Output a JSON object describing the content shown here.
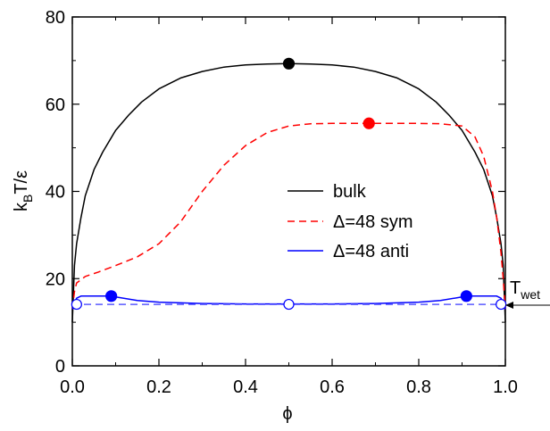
{
  "chart_data": {
    "type": "line",
    "title": "",
    "xlabel": "ϕ",
    "ylabel": {
      "k": "k",
      "sub": "B",
      "rest": "T/ε"
    },
    "xlim": [
      0,
      1
    ],
    "ylim": [
      0,
      80
    ],
    "x_ticks": [
      "0.0",
      "0.2",
      "0.4",
      "0.6",
      "0.8",
      "1.0"
    ],
    "y_ticks": [
      "0",
      "20",
      "40",
      "60",
      "80"
    ],
    "grid": false,
    "legend_position": "center-right",
    "series": [
      {
        "name": "bulk",
        "style": "solid",
        "color": "#000000",
        "x": [
          0.0,
          0.005,
          0.01,
          0.02,
          0.03,
          0.05,
          0.07,
          0.1,
          0.13,
          0.16,
          0.2,
          0.25,
          0.3,
          0.35,
          0.4,
          0.45,
          0.5,
          0.55,
          0.6,
          0.65,
          0.7,
          0.75,
          0.8,
          0.84,
          0.87,
          0.9,
          0.93,
          0.95,
          0.97,
          0.98,
          0.99,
          0.995,
          1.0
        ],
        "y": [
          10,
          23,
          28,
          34,
          39,
          45,
          49,
          54,
          57.5,
          60.5,
          63.5,
          66,
          67.5,
          68.5,
          69,
          69.2,
          69.3,
          69.2,
          69,
          68.5,
          67.5,
          66,
          63.5,
          60.5,
          57.5,
          54,
          49,
          45,
          39,
          34,
          28,
          23,
          10
        ]
      },
      {
        "name": "Δ=48 sym",
        "style": "dashed",
        "color": "#ff0000",
        "x": [
          0.0,
          0.005,
          0.01,
          0.03,
          0.06,
          0.1,
          0.15,
          0.2,
          0.25,
          0.3,
          0.35,
          0.4,
          0.45,
          0.5,
          0.55,
          0.6,
          0.65,
          0.7,
          0.75,
          0.8,
          0.85,
          0.9,
          0.93,
          0.95,
          0.97,
          0.98,
          0.99,
          0.995,
          1.0
        ],
        "y": [
          13,
          17,
          19,
          20.5,
          21.5,
          23,
          25,
          28,
          33,
          40,
          46,
          50.5,
          53.5,
          55,
          55.5,
          55.6,
          55.6,
          55.6,
          55.6,
          55.6,
          55.5,
          55,
          52.5,
          48,
          40,
          34,
          26,
          20,
          13
        ]
      },
      {
        "name": "Δ=48 anti",
        "style": "solid",
        "color": "#0000ff",
        "x": [
          0.0,
          0.005,
          0.01,
          0.02,
          0.03,
          0.05,
          0.08,
          0.1,
          0.15,
          0.2,
          0.3,
          0.4,
          0.5,
          0.6,
          0.7,
          0.8,
          0.85,
          0.9,
          0.92,
          0.95,
          0.97,
          0.98,
          0.99,
          0.995,
          1.0
        ],
        "y": [
          13,
          14.5,
          15.5,
          16,
          16,
          16,
          16,
          15.8,
          15,
          14.6,
          14.3,
          14.2,
          14.2,
          14.2,
          14.3,
          14.6,
          15,
          15.8,
          16,
          16,
          16,
          16,
          15.5,
          14.5,
          13
        ]
      },
      {
        "name": "",
        "style": "dashed",
        "color": "#5a5aff",
        "x": [
          0.0,
          1.0
        ],
        "y": [
          14.1,
          14.1
        ]
      }
    ],
    "markers": [
      {
        "x": 0.5,
        "y": 69.3,
        "color": "#000000",
        "filled": true
      },
      {
        "x": 0.685,
        "y": 55.6,
        "color": "#ff0000",
        "filled": true
      },
      {
        "x": 0.09,
        "y": 16.0,
        "color": "#0000ff",
        "filled": true
      },
      {
        "x": 0.91,
        "y": 16.0,
        "color": "#0000ff",
        "filled": true
      },
      {
        "x": 0.01,
        "y": 14.1,
        "color": "#0000ff",
        "filled": false
      },
      {
        "x": 0.5,
        "y": 14.1,
        "color": "#0000ff",
        "filled": false
      },
      {
        "x": 0.99,
        "y": 14.1,
        "color": "#0000ff",
        "filled": false
      }
    ],
    "annotation": {
      "text": "T",
      "sub": "wet",
      "y": 14.1
    }
  }
}
